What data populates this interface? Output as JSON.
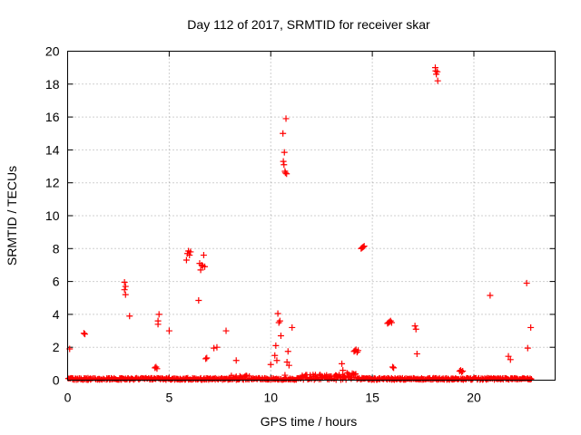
{
  "chart_data": {
    "type": "scatter",
    "title": "Day 112 of 2017, SRMTID for receiver skar",
    "xlabel": "GPS time / hours",
    "ylabel": "SRMTID / TECUs",
    "xlim": [
      0,
      24
    ],
    "ylim": [
      0,
      20
    ],
    "xticks": [
      0,
      5,
      10,
      15,
      20
    ],
    "yticks": [
      0,
      2,
      4,
      6,
      8,
      10,
      12,
      14,
      16,
      18,
      20
    ],
    "grid": true,
    "legend": "none",
    "marker": "plus",
    "color": "#ff0000",
    "baseline": {
      "x_start": 0.0,
      "x_end": 22.8,
      "value_range": [
        0.0,
        0.15
      ]
    },
    "baseline_bumps": [
      {
        "x_start": 8.0,
        "x_end": 9.0,
        "max": 0.3
      },
      {
        "x_start": 11.5,
        "x_end": 14.0,
        "max": 0.35
      },
      {
        "x_start": 13.7,
        "x_end": 14.2,
        "max": 0.45
      }
    ],
    "points": [
      [
        0.1,
        1.9
      ],
      [
        0.8,
        2.85
      ],
      [
        0.85,
        2.8
      ],
      [
        2.8,
        5.95
      ],
      [
        2.8,
        5.5
      ],
      [
        2.85,
        5.2
      ],
      [
        2.85,
        5.7
      ],
      [
        3.05,
        3.9
      ],
      [
        4.3,
        0.75
      ],
      [
        4.35,
        0.8
      ],
      [
        4.4,
        0.7
      ],
      [
        4.45,
        3.4
      ],
      [
        4.45,
        3.6
      ],
      [
        4.5,
        4.0
      ],
      [
        5.0,
        3.0
      ],
      [
        5.85,
        7.3
      ],
      [
        5.9,
        7.7
      ],
      [
        5.95,
        7.85
      ],
      [
        6.0,
        7.6
      ],
      [
        6.05,
        7.8
      ],
      [
        6.45,
        4.85
      ],
      [
        6.5,
        7.1
      ],
      [
        6.55,
        6.7
      ],
      [
        6.6,
        7.0
      ],
      [
        6.65,
        6.95
      ],
      [
        6.7,
        7.6
      ],
      [
        6.75,
        6.9
      ],
      [
        6.8,
        1.3
      ],
      [
        6.85,
        1.35
      ],
      [
        7.2,
        1.95
      ],
      [
        7.35,
        2.0
      ],
      [
        7.8,
        3.0
      ],
      [
        8.3,
        1.2
      ],
      [
        10.0,
        0.95
      ],
      [
        10.2,
        1.5
      ],
      [
        10.25,
        2.1
      ],
      [
        10.3,
        1.2
      ],
      [
        10.35,
        4.05
      ],
      [
        10.4,
        3.5
      ],
      [
        10.45,
        3.6
      ],
      [
        10.5,
        2.7
      ],
      [
        10.6,
        15.0
      ],
      [
        10.62,
        13.3
      ],
      [
        10.65,
        13.1
      ],
      [
        10.67,
        13.85
      ],
      [
        10.7,
        12.7
      ],
      [
        10.72,
        12.6
      ],
      [
        10.75,
        15.9
      ],
      [
        10.78,
        12.55
      ],
      [
        10.7,
        0.3
      ],
      [
        10.8,
        1.1
      ],
      [
        10.85,
        1.75
      ],
      [
        10.9,
        0.9
      ],
      [
        11.05,
        3.2
      ],
      [
        13.5,
        1.0
      ],
      [
        13.55,
        0.6
      ],
      [
        14.1,
        1.75
      ],
      [
        14.15,
        1.8
      ],
      [
        14.2,
        1.85
      ],
      [
        14.25,
        1.7
      ],
      [
        14.3,
        1.8
      ],
      [
        14.45,
        8.0
      ],
      [
        14.5,
        8.05
      ],
      [
        14.55,
        8.1
      ],
      [
        14.6,
        8.15
      ],
      [
        15.75,
        3.45
      ],
      [
        15.8,
        3.5
      ],
      [
        15.85,
        3.55
      ],
      [
        15.9,
        3.6
      ],
      [
        15.95,
        3.5
      ],
      [
        16.0,
        0.8
      ],
      [
        16.05,
        0.75
      ],
      [
        17.1,
        3.3
      ],
      [
        17.15,
        3.1
      ],
      [
        17.2,
        1.6
      ],
      [
        18.1,
        19.0
      ],
      [
        18.12,
        18.8
      ],
      [
        18.15,
        18.6
      ],
      [
        18.2,
        18.75
      ],
      [
        18.22,
        18.2
      ],
      [
        19.3,
        0.55
      ],
      [
        19.35,
        0.6
      ],
      [
        19.4,
        0.5
      ],
      [
        19.45,
        0.55
      ],
      [
        20.8,
        5.15
      ],
      [
        21.7,
        1.45
      ],
      [
        21.8,
        1.25
      ],
      [
        22.6,
        5.9
      ],
      [
        22.65,
        1.95
      ],
      [
        22.8,
        3.2
      ]
    ]
  }
}
